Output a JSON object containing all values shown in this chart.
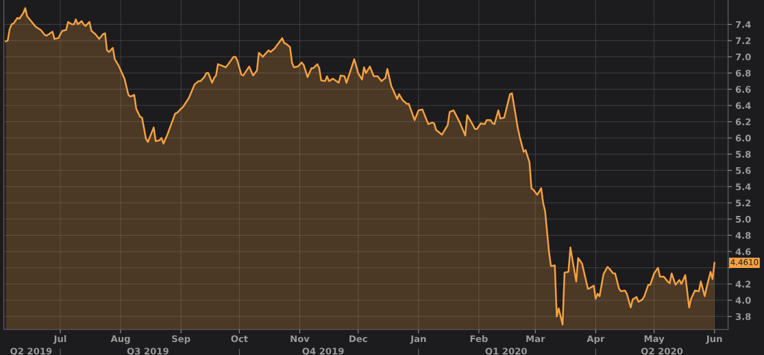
{
  "chart_data": {
    "type": "area",
    "x": [
      "2019-06-03",
      "2019-06-04",
      "2019-06-05",
      "2019-06-06",
      "2019-06-07",
      "2019-06-09",
      "2019-06-10",
      "2019-06-12",
      "2019-06-13",
      "2019-06-14",
      "2019-06-16",
      "2019-06-18",
      "2019-06-19",
      "2019-06-21",
      "2019-06-23",
      "2019-06-24",
      "2019-06-27",
      "2019-06-28",
      "2019-06-30",
      "2019-07-02",
      "2019-07-04",
      "2019-07-05",
      "2019-07-07",
      "2019-07-08",
      "2019-07-09",
      "2019-07-10",
      "2019-07-12",
      "2019-07-13",
      "2019-07-14",
      "2019-07-16",
      "2019-07-17",
      "2019-07-19",
      "2019-07-21",
      "2019-07-23",
      "2019-07-24",
      "2019-07-25",
      "2019-07-26",
      "2019-07-28",
      "2019-07-29",
      "2019-07-31",
      "2019-08-03",
      "2019-08-05",
      "2019-08-06",
      "2019-08-08",
      "2019-08-09",
      "2019-08-11",
      "2019-08-12",
      "2019-08-14",
      "2019-08-15",
      "2019-08-16",
      "2019-08-18",
      "2019-08-19",
      "2019-08-21",
      "2019-08-22",
      "2019-08-23",
      "2019-08-25",
      "2019-08-27",
      "2019-08-29",
      "2019-08-30",
      "2019-09-01",
      "2019-09-02",
      "2019-09-05",
      "2019-09-08",
      "2019-09-10",
      "2019-09-11",
      "2019-09-13",
      "2019-09-14",
      "2019-09-15",
      "2019-09-17",
      "2019-09-18",
      "2019-09-19",
      "2019-09-20",
      "2019-09-22",
      "2019-09-24",
      "2019-09-25",
      "2019-09-28",
      "2019-09-29",
      "2019-09-30",
      "2019-10-02",
      "2019-10-03",
      "2019-10-06",
      "2019-10-08",
      "2019-10-10",
      "2019-10-11",
      "2019-10-13",
      "2019-10-16",
      "2019-10-17",
      "2019-10-19",
      "2019-10-23",
      "2019-10-24",
      "2019-10-25",
      "2019-10-27",
      "2019-10-28",
      "2019-10-29",
      "2019-10-31",
      "2019-11-02",
      "2019-11-03",
      "2019-11-05",
      "2019-11-07",
      "2019-11-08",
      "2019-11-10",
      "2019-11-11",
      "2019-11-12",
      "2019-11-14",
      "2019-11-15",
      "2019-11-16",
      "2019-11-18",
      "2019-11-21",
      "2019-11-22",
      "2019-11-24",
      "2019-11-25",
      "2019-11-29",
      "2019-12-01",
      "2019-12-03",
      "2019-12-04",
      "2019-12-05",
      "2019-12-07",
      "2019-12-09",
      "2019-12-11",
      "2019-12-13",
      "2019-12-15",
      "2019-12-16",
      "2019-12-18",
      "2019-12-19",
      "2019-12-21",
      "2019-12-22",
      "2019-12-24",
      "2019-12-26",
      "2019-12-27",
      "2019-12-30",
      "2020-01-01",
      "2020-01-03",
      "2020-01-06",
      "2020-01-08",
      "2020-01-09",
      "2020-01-10",
      "2020-01-13",
      "2020-01-16",
      "2020-01-17",
      "2020-01-19",
      "2020-01-22",
      "2020-01-25",
      "2020-01-26",
      "2020-01-28",
      "2020-01-30",
      "2020-01-31",
      "2020-02-02",
      "2020-02-04",
      "2020-02-05",
      "2020-02-07",
      "2020-02-08",
      "2020-02-09",
      "2020-02-11",
      "2020-02-12",
      "2020-02-14",
      "2020-02-17",
      "2020-02-18",
      "2020-02-21",
      "2020-02-22",
      "2020-02-24",
      "2020-02-25",
      "2020-02-27",
      "2020-02-28",
      "2020-02-29",
      "2020-03-02",
      "2020-03-04",
      "2020-03-05",
      "2020-03-06",
      "2020-03-08",
      "2020-03-09",
      "2020-03-11",
      "2020-03-12",
      "2020-03-13",
      "2020-03-15",
      "2020-03-16",
      "2020-03-18",
      "2020-03-19",
      "2020-03-22",
      "2020-03-23",
      "2020-03-25",
      "2020-03-28",
      "2020-03-29",
      "2020-03-31",
      "2020-04-01",
      "2020-04-02",
      "2020-04-03",
      "2020-04-05",
      "2020-04-07",
      "2020-04-08",
      "2020-04-10",
      "2020-04-11",
      "2020-04-13",
      "2020-04-14",
      "2020-04-16",
      "2020-04-17",
      "2020-04-19",
      "2020-04-20",
      "2020-04-22",
      "2020-04-23",
      "2020-04-25",
      "2020-04-26",
      "2020-04-28",
      "2020-04-29",
      "2020-05-01",
      "2020-05-03",
      "2020-05-04",
      "2020-05-06",
      "2020-05-08",
      "2020-05-09",
      "2020-05-10",
      "2020-05-12",
      "2020-05-14",
      "2020-05-15",
      "2020-05-17",
      "2020-05-19",
      "2020-05-20",
      "2020-05-22",
      "2020-05-24",
      "2020-05-25",
      "2020-05-27",
      "2020-05-28",
      "2020-05-30",
      "2020-05-31",
      "2020-06-01"
    ],
    "series": [
      {
        "color": "#f5a142",
        "values": [
          7.19,
          7.2,
          7.34,
          7.4,
          7.41,
          7.48,
          7.47,
          7.54,
          7.6,
          7.5,
          7.44,
          7.38,
          7.36,
          7.33,
          7.27,
          7.26,
          7.31,
          7.22,
          7.23,
          7.32,
          7.33,
          7.43,
          7.4,
          7.4,
          7.46,
          7.4,
          7.44,
          7.4,
          7.38,
          7.43,
          7.32,
          7.28,
          7.22,
          7.28,
          7.29,
          7.08,
          7.06,
          7.11,
          6.97,
          6.89,
          6.73,
          6.53,
          6.51,
          6.53,
          6.36,
          6.26,
          6.25,
          5.99,
          5.95,
          6.01,
          6.13,
          5.96,
          5.97,
          6.0,
          5.93,
          6.04,
          6.17,
          6.3,
          6.31,
          6.36,
          6.38,
          6.49,
          6.66,
          6.7,
          6.7,
          6.75,
          6.8,
          6.8,
          6.68,
          6.74,
          6.77,
          6.91,
          6.89,
          6.87,
          6.9,
          7.0,
          7.0,
          6.95,
          6.78,
          6.77,
          6.88,
          6.77,
          6.83,
          7.05,
          7.0,
          7.08,
          7.06,
          7.1,
          7.23,
          7.17,
          7.16,
          7.12,
          6.93,
          6.87,
          6.88,
          6.93,
          6.9,
          6.75,
          6.86,
          6.86,
          6.91,
          6.86,
          6.71,
          6.7,
          6.76,
          6.7,
          6.73,
          6.68,
          6.77,
          6.76,
          6.68,
          6.97,
          6.8,
          6.72,
          6.87,
          6.8,
          6.88,
          6.76,
          6.76,
          6.7,
          6.74,
          6.85,
          6.64,
          6.59,
          6.48,
          6.54,
          6.46,
          6.42,
          6.42,
          6.22,
          6.34,
          6.35,
          6.17,
          6.19,
          6.18,
          6.1,
          6.04,
          6.16,
          6.32,
          6.34,
          6.2,
          6.03,
          6.28,
          6.2,
          6.11,
          6.11,
          6.18,
          6.17,
          6.22,
          6.22,
          6.18,
          6.17,
          6.34,
          6.24,
          6.25,
          6.54,
          6.55,
          6.12,
          6.01,
          5.83,
          5.85,
          5.7,
          5.38,
          5.36,
          5.3,
          5.38,
          5.2,
          5.1,
          4.6,
          4.42,
          4.43,
          3.8,
          3.9,
          3.7,
          4.34,
          4.35,
          4.65,
          4.23,
          4.52,
          4.45,
          4.14,
          4.15,
          4.18,
          4.02,
          4.08,
          4.05,
          4.32,
          4.41,
          4.39,
          4.33,
          4.33,
          4.14,
          4.11,
          4.12,
          4.08,
          3.91,
          4.01,
          4.04,
          3.98,
          4.01,
          4.05,
          4.19,
          4.19,
          4.33,
          4.4,
          4.29,
          4.29,
          4.23,
          4.21,
          4.33,
          4.19,
          4.25,
          4.2,
          4.31,
          3.91,
          4.02,
          4.12,
          4.11,
          4.23,
          4.05,
          4.16,
          4.35,
          4.26,
          4.46
        ]
      }
    ],
    "xlim": [
      "2019-06-02",
      "2020-06-08"
    ],
    "xticks": [
      {
        "value": "2019-07-01",
        "label": "Jul"
      },
      {
        "value": "2019-08-01",
        "label": "Aug"
      },
      {
        "value": "2019-09-01",
        "label": "Sep"
      },
      {
        "value": "2019-10-01",
        "label": "Oct"
      },
      {
        "value": "2019-11-01",
        "label": "Nov"
      },
      {
        "value": "2019-12-01",
        "label": "Dec"
      },
      {
        "value": "2020-01-01",
        "label": "Jan"
      },
      {
        "value": "2020-02-01",
        "label": "Feb"
      },
      {
        "value": "2020-03-01",
        "label": "Mar"
      },
      {
        "value": "2020-04-01",
        "label": "Apr"
      },
      {
        "value": "2020-05-01",
        "label": "May"
      },
      {
        "value": "2020-06-01",
        "label": "Jun"
      }
    ],
    "x2lim": [
      "2019-06-02",
      "2020-06-08"
    ],
    "x2ticks": [
      {
        "value": "2019-06-16",
        "label": "Q2 2019"
      },
      {
        "value": "2019-07-01",
        "label": null
      },
      {
        "value": "2019-08-15",
        "label": "Q3 2019"
      },
      {
        "value": "2019-10-01",
        "label": null
      },
      {
        "value": "2019-11-13",
        "label": "Q4 2019"
      },
      {
        "value": "2020-01-01",
        "label": null
      },
      {
        "value": "2020-02-15",
        "label": "Q1 2020"
      },
      {
        "value": "2020-04-01",
        "label": null
      },
      {
        "value": "2020-05-05",
        "label": "Q2 2020"
      }
    ],
    "ylim": [
      3.64,
      7.7
    ],
    "yticks": [
      3.8,
      {
        "value": 4,
        "label": "4.0"
      },
      4.2,
      {
        "value": 4.4,
        "label": null
      },
      4.6,
      4.8,
      {
        "value": 5,
        "label": "5.0"
      },
      5.2,
      5.4,
      5.6,
      5.8,
      {
        "value": 6,
        "label": "6.0"
      },
      6.2,
      6.4,
      6.6,
      6.8,
      {
        "value": 7,
        "label": "7.0"
      },
      7.2,
      7.4
    ],
    "grid": true,
    "annotations": [
      {
        "text": "4.4610",
        "x": "2020-06-01",
        "y": 4.461
      }
    ]
  }
}
